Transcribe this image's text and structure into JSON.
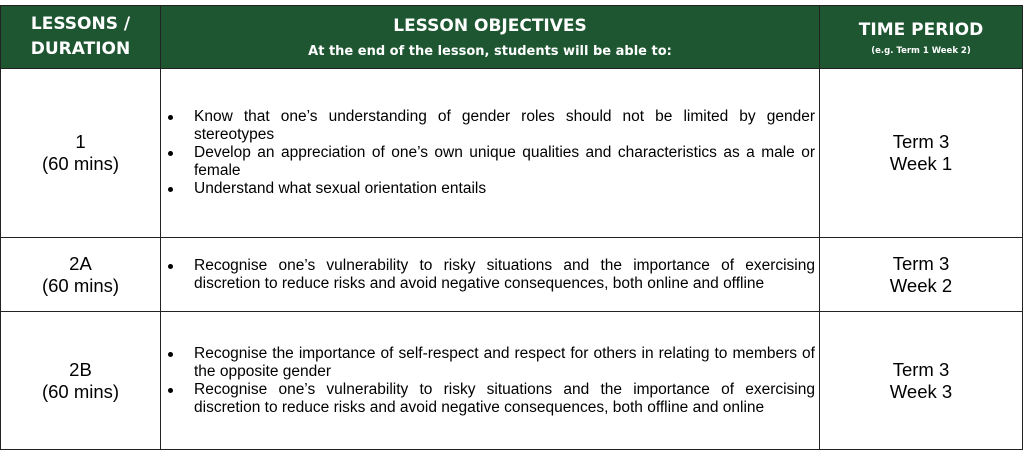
{
  "header": {
    "lessons_line1": "LESSONS /",
    "lessons_line2": "DURATION",
    "objectives_title": "LESSON OBJECTIVES",
    "objectives_subtitle": "At the end of the lesson, students will be able to:",
    "time_title": "TIME PERIOD",
    "time_subtitle": "(e.g. Term 1 Week 2)"
  },
  "rows": [
    {
      "lesson": "1",
      "duration": "(60 mins)",
      "objectives": [
        "Know that one’s understanding of gender roles should not be limited by gender stereotypes",
        "Develop an appreciation of one’s own unique qualities and characteristics as a male or female",
        "Understand what sexual orientation entails"
      ],
      "term": "Term 3",
      "week": "Week 1"
    },
    {
      "lesson": "2A",
      "duration": "(60 mins)",
      "objectives": [
        "Recognise one’s vulnerability to risky situations and the importance of exercising discretion to reduce risks and avoid negative consequences, both online and offline"
      ],
      "term": "Term 3",
      "week": "Week 2"
    },
    {
      "lesson": "2B",
      "duration": "(60 mins)",
      "objectives": [
        "Recognise the importance of self-respect and respect for others in relating to members of the opposite gender",
        "Recognise one’s vulnerability to risky situations and the importance of exercising discretion to reduce risks and avoid negative consequences, both offline and online"
      ],
      "term": "Term 3",
      "week": "Week 3"
    }
  ]
}
